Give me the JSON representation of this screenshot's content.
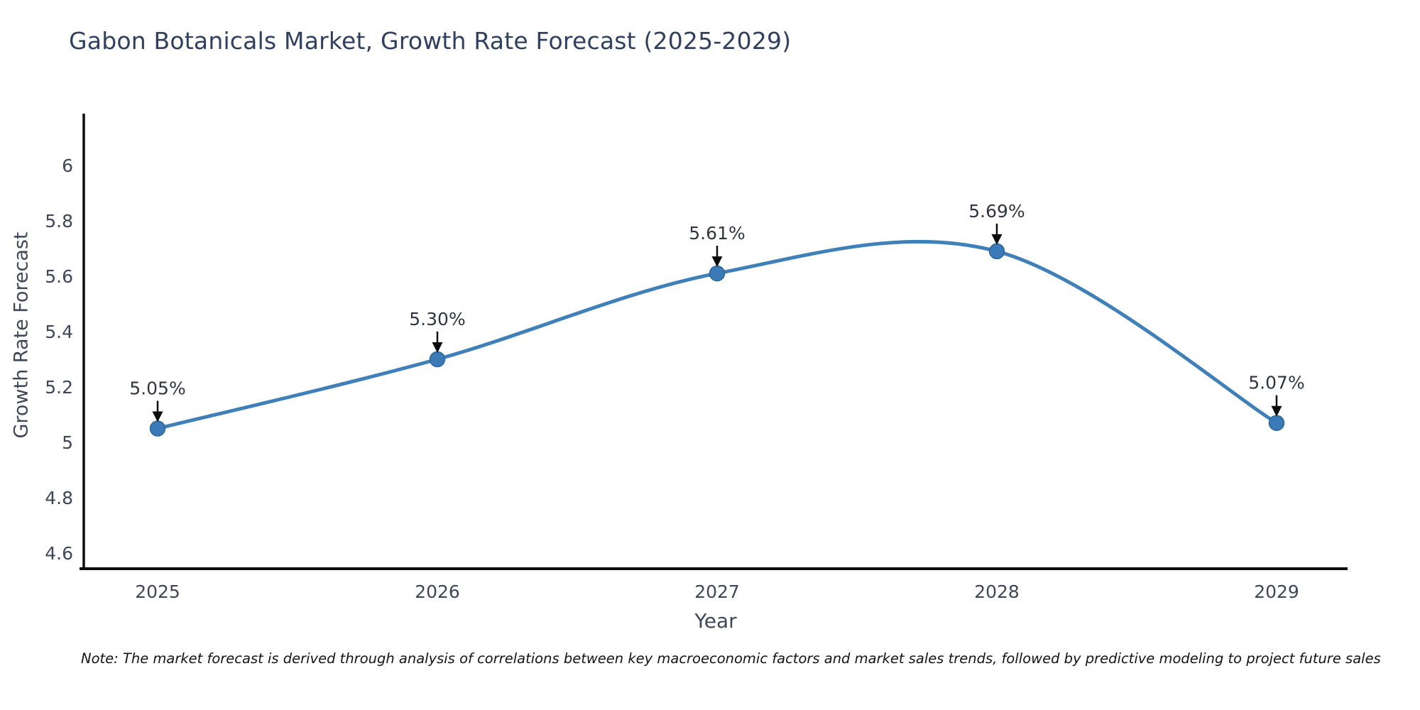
{
  "note": "Note: The market forecast is derived through analysis of correlations between key macroeconomic factors and market sales trends, followed by predictive modeling to project future sales",
  "chart_data": {
    "type": "line",
    "title": "Gabon Botanicals Market, Growth Rate Forecast (2025-2029)",
    "xlabel": "Year",
    "ylabel": "Growth Rate Forecast",
    "x": [
      2025,
      2026,
      2027,
      2028,
      2029
    ],
    "values": [
      5.05,
      5.3,
      5.61,
      5.69,
      5.07
    ],
    "point_labels": [
      "5.05%",
      "5.30%",
      "5.61%",
      "5.69%",
      "5.07%"
    ],
    "yticks": [
      4.6,
      4.8,
      5,
      5.2,
      5.4,
      5.6,
      5.8,
      6
    ],
    "ylim": [
      4.55,
      6.29
    ],
    "xlim": [
      2024.72,
      2029.26
    ],
    "line_shape": "spline",
    "markers": true,
    "grid": false,
    "legend": false,
    "colors": {
      "line": "#4080b8",
      "marker": "#3a7ab6",
      "marker_edge": "#2d659b",
      "axis": "#0d0d0d",
      "tick": "#3e4657",
      "title": "#30405f",
      "axis_label": "#3e4657",
      "annotation": "#30363f",
      "arrow": "#0d0d0d",
      "note": "#141414"
    }
  }
}
